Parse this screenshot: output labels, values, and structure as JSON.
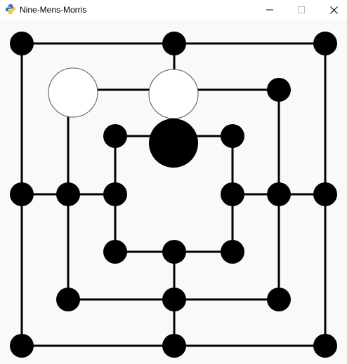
{
  "window": {
    "title": "Nine-Mens-Morris",
    "icon": "python-icon",
    "controls": [
      "minimize-icon",
      "maximize-icon",
      "close-icon"
    ]
  },
  "colors": {
    "board_line": "#000000",
    "point": "#000000",
    "white_piece_fill": "#ffffff",
    "white_piece_stroke": "#555555",
    "black_piece": "#000000",
    "background": "#f9f9f9"
  },
  "board": {
    "points": [
      {
        "id": "a7",
        "state": "empty"
      },
      {
        "id": "d7",
        "state": "empty"
      },
      {
        "id": "g7",
        "state": "empty"
      },
      {
        "id": "b6",
        "state": "white"
      },
      {
        "id": "d6",
        "state": "white"
      },
      {
        "id": "f6",
        "state": "empty"
      },
      {
        "id": "c5",
        "state": "empty"
      },
      {
        "id": "d5",
        "state": "black"
      },
      {
        "id": "e5",
        "state": "empty"
      },
      {
        "id": "a4",
        "state": "empty"
      },
      {
        "id": "b4",
        "state": "empty"
      },
      {
        "id": "c4",
        "state": "empty"
      },
      {
        "id": "e4",
        "state": "empty"
      },
      {
        "id": "f4",
        "state": "empty"
      },
      {
        "id": "g4",
        "state": "empty"
      },
      {
        "id": "c3",
        "state": "empty"
      },
      {
        "id": "d3",
        "state": "empty"
      },
      {
        "id": "e3",
        "state": "empty"
      },
      {
        "id": "b2",
        "state": "empty"
      },
      {
        "id": "d2",
        "state": "empty"
      },
      {
        "id": "f2",
        "state": "empty"
      },
      {
        "id": "a1",
        "state": "empty"
      },
      {
        "id": "d1",
        "state": "empty"
      },
      {
        "id": "g1",
        "state": "empty"
      }
    ]
  }
}
